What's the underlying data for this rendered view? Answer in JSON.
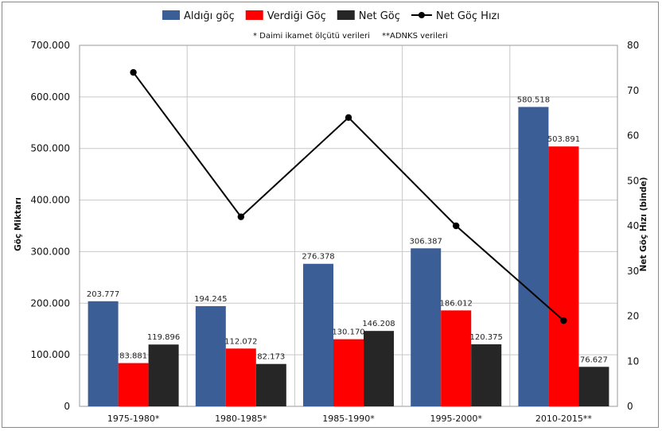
{
  "chart_data": {
    "type": "bar",
    "categories": [
      "1975-1980*",
      "1980-1985*",
      "1985-1990*",
      "1995-2000*",
      "2010-2015**"
    ],
    "series": [
      {
        "name": "Aldığı göç",
        "color": "#3B5E96",
        "values": [
          203777,
          194245,
          276378,
          306387,
          580518
        ],
        "labels": [
          "203.777",
          "194.245",
          "276.378",
          "306.387",
          "580.518"
        ]
      },
      {
        "name": "Verdiği Göç",
        "color": "#FF0000",
        "values": [
          83881,
          112072,
          130170,
          186012,
          503891
        ],
        "labels": [
          "83.881",
          "112.072",
          "130.170",
          "186.012",
          "503.891"
        ]
      },
      {
        "name": "Net Göç",
        "color": "#262626",
        "values": [
          119896,
          82173,
          146208,
          120375,
          76627
        ],
        "labels": [
          "119.896",
          "82.173",
          "146.208",
          "120.375",
          "76.627"
        ]
      }
    ],
    "line_series": {
      "name": "Net Göç Hızı",
      "color": "#000000",
      "values": [
        74,
        42,
        64,
        40,
        19
      ],
      "axis": "right"
    },
    "ylabel": "Göç Miktarı",
    "y2label": "Net Göç Hızı (binde)",
    "ylim": [
      0,
      700000
    ],
    "y2lim": [
      0,
      80
    ],
    "yticks": [
      "0",
      "100.000",
      "200.000",
      "300.000",
      "400.000",
      "500.000",
      "600.000",
      "700.000"
    ],
    "y2ticks": [
      "0",
      "10",
      "20",
      "30",
      "40",
      "50",
      "60",
      "70",
      "80"
    ],
    "notes": [
      "* Daimi ikamet ölçütü verileri",
      "**ADNKS verileri"
    ],
    "legend_position": "top",
    "grid": true
  }
}
